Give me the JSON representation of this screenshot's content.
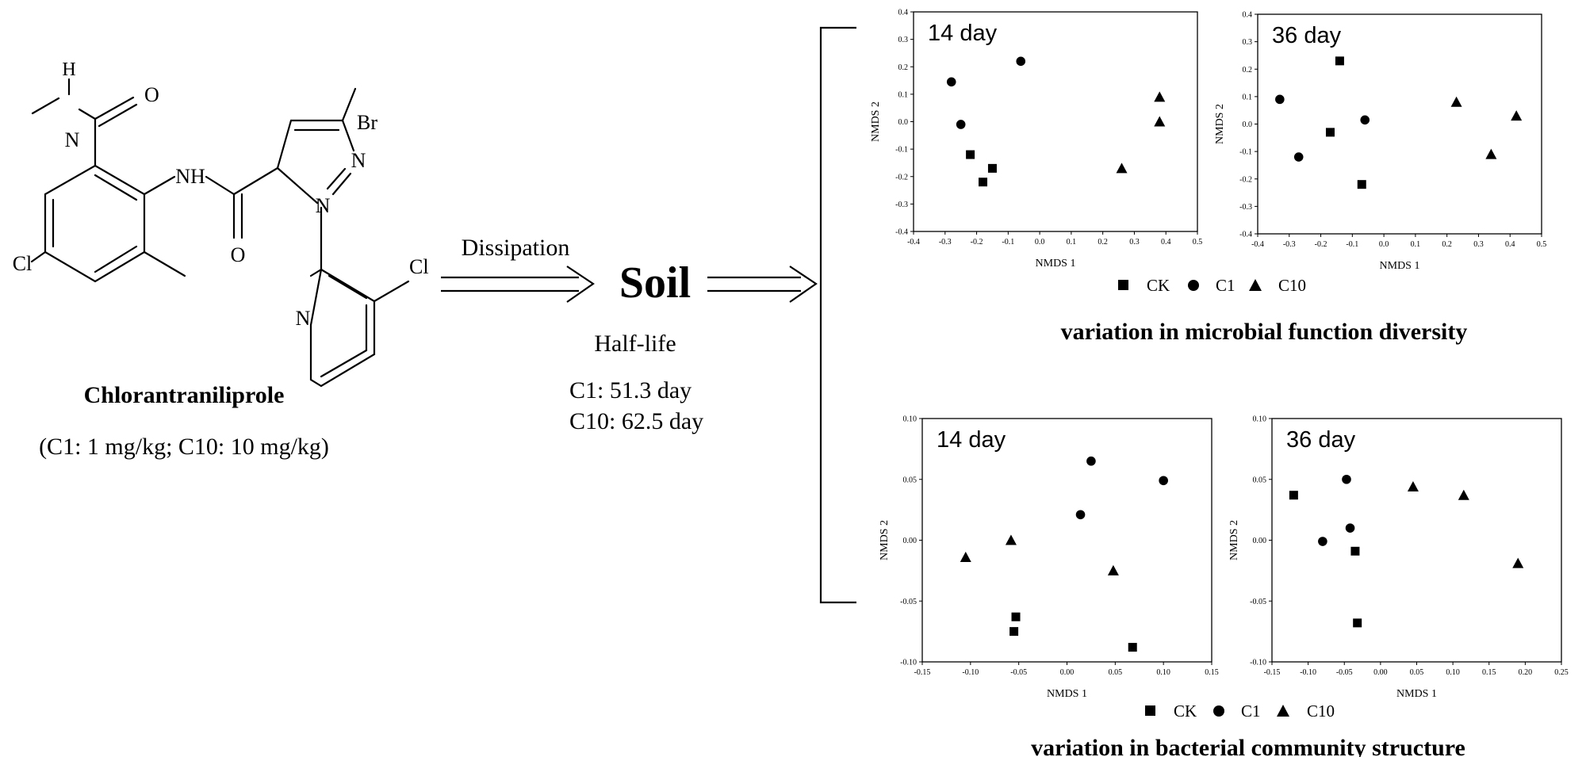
{
  "molecule": {
    "atoms": {
      "br": "Br",
      "cl_pyr": "Cl",
      "cl_benz": "Cl",
      "o_amide1": "O",
      "o_amide2": "O",
      "nh": "NH",
      "h": "H",
      "n_amide": "N",
      "n_pyr": "N",
      "n_pz1": "N",
      "n_pz2": "N"
    },
    "name": "Chlorantraniliprole",
    "doses": "(C1: 1 mg/kg;  C10: 10 mg/kg)"
  },
  "process": {
    "arrow_label": "Dissipation",
    "medium": "Soil",
    "half_life_label": "Half-life",
    "half_life_c1": "C1:   51.3 day",
    "half_life_c10": "C10: 62.5 day"
  },
  "legend": {
    "ck": "CK",
    "c1": "C1",
    "c10": "C10"
  },
  "captions": {
    "function": "variation in microbial function diversity",
    "community": "variation in bacterial community structure"
  },
  "colors": {
    "ink": "#000000",
    "background": "#ffffff"
  },
  "chart_data": [
    {
      "type": "scatter",
      "title": "14 day",
      "xlabel": "NMDS 1",
      "ylabel": "NMDS 2",
      "xlim": [
        -0.4,
        0.5
      ],
      "ylim": [
        -0.4,
        0.4
      ],
      "xticks": [
        "-0.4",
        "-0.3",
        "-0.2",
        "-0.1",
        "0.0",
        "0.1",
        "0.2",
        "0.3",
        "0.4",
        "0.5"
      ],
      "yticks": [
        "-0.4",
        "-0.3",
        "-0.2",
        "-0.1",
        "0.0",
        "0.1",
        "0.2",
        "0.3",
        "0.4"
      ],
      "series": [
        {
          "name": "CK",
          "marker": "square",
          "points": [
            [
              -0.22,
              -0.12
            ],
            [
              -0.15,
              -0.17
            ],
            [
              -0.18,
              -0.22
            ]
          ]
        },
        {
          "name": "C1",
          "marker": "circle",
          "points": [
            [
              -0.28,
              0.145
            ],
            [
              -0.06,
              0.22
            ],
            [
              -0.25,
              -0.01
            ]
          ]
        },
        {
          "name": "C10",
          "marker": "triangle",
          "points": [
            [
              0.38,
              0.09
            ],
            [
              0.38,
              0.0
            ],
            [
              0.26,
              -0.17
            ]
          ]
        }
      ]
    },
    {
      "type": "scatter",
      "title": "36 day",
      "xlabel": "NMDS 1",
      "ylabel": "NMDS 2",
      "xlim": [
        -0.4,
        0.5
      ],
      "ylim": [
        -0.4,
        0.4
      ],
      "xticks": [
        "-0.4",
        "-0.3",
        "-0.2",
        "-0.1",
        "0.0",
        "0.1",
        "0.2",
        "0.3",
        "0.4",
        "0.5"
      ],
      "yticks": [
        "-0.4",
        "-0.3",
        "-0.2",
        "-0.1",
        "0.0",
        "0.1",
        "0.2",
        "0.3",
        "0.4"
      ],
      "series": [
        {
          "name": "CK",
          "marker": "square",
          "points": [
            [
              -0.14,
              0.23
            ],
            [
              -0.17,
              -0.03
            ],
            [
              -0.07,
              -0.22
            ]
          ]
        },
        {
          "name": "C1",
          "marker": "circle",
          "points": [
            [
              -0.33,
              0.09
            ],
            [
              -0.27,
              -0.12
            ],
            [
              -0.06,
              0.015
            ]
          ]
        },
        {
          "name": "C10",
          "marker": "triangle",
          "points": [
            [
              0.23,
              0.08
            ],
            [
              0.42,
              0.03
            ],
            [
              0.34,
              -0.11
            ]
          ]
        }
      ]
    },
    {
      "type": "scatter",
      "title": "14 day",
      "xlabel": "NMDS 1",
      "ylabel": "NMDS 2",
      "xlim": [
        -0.15,
        0.15
      ],
      "ylim": [
        -0.1,
        0.1
      ],
      "xticks": [
        "-0.15",
        "-0.10",
        "-0.05",
        "0.00",
        "0.05",
        "0.10",
        "0.15"
      ],
      "yticks": [
        "-0.10",
        "-0.05",
        "0.00",
        "0.05",
        "0.10"
      ],
      "series": [
        {
          "name": "CK",
          "marker": "square",
          "points": [
            [
              -0.053,
              -0.063
            ],
            [
              -0.055,
              -0.075
            ],
            [
              0.068,
              -0.088
            ]
          ]
        },
        {
          "name": "C1",
          "marker": "circle",
          "points": [
            [
              0.025,
              0.065
            ],
            [
              0.014,
              0.021
            ],
            [
              0.1,
              0.049
            ]
          ]
        },
        {
          "name": "C10",
          "marker": "triangle",
          "points": [
            [
              -0.105,
              -0.014
            ],
            [
              -0.058,
              0.0
            ],
            [
              0.048,
              -0.025
            ]
          ]
        }
      ]
    },
    {
      "type": "scatter",
      "title": "36 day",
      "xlabel": "NMDS 1",
      "ylabel": "NMDS 2",
      "xlim": [
        -0.15,
        0.25
      ],
      "ylim": [
        -0.1,
        0.1
      ],
      "xticks": [
        "-0.15",
        "-0.10",
        "-0.05",
        "0.00",
        "0.05",
        "0.10",
        "0.15",
        "0.20",
        "0.25"
      ],
      "yticks": [
        "-0.10",
        "-0.05",
        "0.00",
        "0.05",
        "0.10"
      ],
      "series": [
        {
          "name": "CK",
          "marker": "square",
          "points": [
            [
              -0.12,
              0.037
            ],
            [
              -0.035,
              -0.009
            ],
            [
              -0.032,
              -0.068
            ]
          ]
        },
        {
          "name": "C1",
          "marker": "circle",
          "points": [
            [
              -0.047,
              0.05
            ],
            [
              -0.042,
              0.01
            ],
            [
              -0.08,
              -0.001
            ]
          ]
        },
        {
          "name": "C10",
          "marker": "triangle",
          "points": [
            [
              0.045,
              0.044
            ],
            [
              0.115,
              0.037
            ],
            [
              0.19,
              -0.019
            ]
          ]
        }
      ]
    }
  ]
}
